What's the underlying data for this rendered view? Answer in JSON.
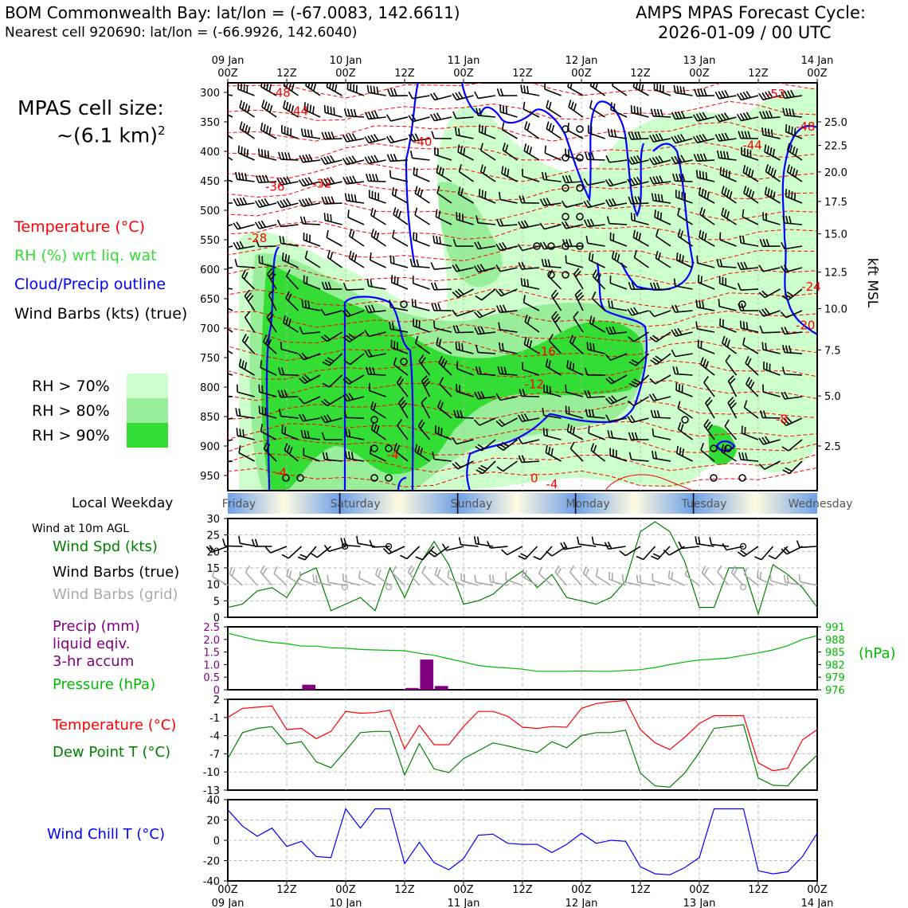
{
  "header": {
    "station_title": "BOM Commonwealth Bay: lat/lon = (-67.0083, 142.6611)",
    "nearest_cell": "Nearest cell 920690: lat/lon = (-66.9926, 142.6040)",
    "forecast_title_line1": "AMPS MPAS Forecast Cycle:",
    "forecast_title_line2": "2026-01-09 / 00 UTC"
  },
  "left_panel": {
    "cell_size_line1": "MPAS cell size:",
    "cell_size_line2": "~(6.1 km)",
    "cell_size_sup": "2",
    "legend_temperature": "Temperature (°C)",
    "legend_rh": "RH (%) wrt liq. wat",
    "legend_cloud": "Cloud/Precip outline",
    "legend_barbs": "Wind Barbs (kts) (true)",
    "rh_levels": [
      "RH > 70%",
      "RH > 80%",
      "RH > 90%"
    ],
    "local_weekday_label": "Local Weekday",
    "wind_10m_label": "Wind at 10m AGL",
    "wind_spd_label": "Wind Spd (kts)",
    "wind_barbs_true_label": "Wind Barbs (true)",
    "wind_barbs_grid_label": "Wind Barbs (grid)",
    "precip_line1": "Precip (mm)",
    "precip_line2": "liquid eqiv.",
    "precip_line3": "3-hr accum",
    "pressure_label": "Pressure (hPa)",
    "temp_label": "Temperature (°C)",
    "dewpoint_label": "Dew Point T (°C)",
    "windchill_label": "Wind Chill T (°C)"
  },
  "colors": {
    "temperature": "#ff0000",
    "rh_legend": "#33dd33",
    "cloud": "#0000ff",
    "wind_spd": "#008000",
    "grid_barbs": "#aaaaaa",
    "precip": "#800080",
    "pressure": "#00bb00",
    "dewpoint": "#008000",
    "windchill": "#0000ff",
    "rh70": "#ccffcc",
    "rh80": "#99ee99",
    "rh90": "#33dd33"
  },
  "chart_data": [
    {
      "type": "contour",
      "name": "time-height cross section",
      "x_top_ticks": [
        "09 Jan\n00Z",
        "12Z",
        "10 Jan\n00Z",
        "12Z",
        "11 Jan\n00Z",
        "12Z",
        "12 Jan\n00Z",
        "12Z",
        "13 Jan\n00Z",
        "12Z",
        "14 Jan\n00Z"
      ],
      "ylabel_right": "kft MSL",
      "pressure_levels": [
        300,
        350,
        400,
        450,
        500,
        550,
        600,
        650,
        700,
        750,
        800,
        850,
        900,
        950
      ],
      "kft_ticks": [
        "25.0",
        "22.5",
        "20.0",
        "17.5",
        "15.0",
        "12.5",
        "10.0",
        "7.5",
        "5.0",
        "2.5"
      ],
      "kft_tick_pressures": [
        350,
        390,
        435,
        485,
        540,
        605,
        667,
        737,
        815,
        900
      ],
      "isotherm_labels": [
        {
          "t": 0.9,
          "p": 301,
          "label": "-48"
        },
        {
          "t": 1.2,
          "p": 332,
          "label": "-44"
        },
        {
          "t": 3.3,
          "p": 384,
          "label": "-40"
        },
        {
          "t": 0.8,
          "p": 460,
          "label": "-36"
        },
        {
          "t": 1.6,
          "p": 455,
          "label": "-32"
        },
        {
          "t": 0.5,
          "p": 547,
          "label": "-28"
        },
        {
          "t": 9.3,
          "p": 303,
          "label": "-52"
        },
        {
          "t": 9.8,
          "p": 358,
          "label": "-48"
        },
        {
          "t": 8.9,
          "p": 390,
          "label": "-44"
        },
        {
          "t": 9.9,
          "p": 630,
          "label": "-24"
        },
        {
          "t": 9.8,
          "p": 695,
          "label": "-20"
        },
        {
          "t": 5.4,
          "p": 740,
          "label": "-16"
        },
        {
          "t": 5.2,
          "p": 795,
          "label": "-12"
        },
        {
          "t": 9.4,
          "p": 855,
          "label": "-8"
        },
        {
          "t": 2.8,
          "p": 915,
          "label": "-4"
        },
        {
          "t": 0.9,
          "p": 945,
          "label": "-4"
        },
        {
          "t": 5.2,
          "p": 955,
          "label": "0"
        },
        {
          "t": 5.5,
          "p": 965,
          "label": "-4"
        }
      ],
      "local_weekdays": [
        "Friday",
        "Saturday",
        "Sunday",
        "Monday",
        "Tuesday",
        "Wednesday"
      ]
    },
    {
      "type": "line",
      "name": "Wind Spd (kts)",
      "x_hours": [
        0,
        3,
        6,
        9,
        12,
        15,
        18,
        21,
        24,
        27,
        30,
        33,
        36,
        39,
        42,
        45,
        48,
        51,
        54,
        57,
        60,
        63,
        66,
        69,
        72,
        75,
        78,
        81,
        84,
        87,
        90,
        93,
        96,
        99,
        102,
        105,
        108,
        111,
        114,
        117,
        120
      ],
      "values": [
        3,
        4,
        8,
        9,
        6,
        13,
        15,
        2,
        4,
        6,
        2,
        15,
        6,
        16,
        23,
        16,
        4,
        5,
        7,
        11,
        14,
        9,
        13,
        6,
        5,
        4,
        6,
        11,
        26,
        29,
        26,
        17,
        3,
        3,
        15,
        15,
        1,
        16,
        13,
        9,
        3
      ],
      "ylim": [
        0,
        30
      ],
      "yticks": [
        0,
        5,
        10,
        15,
        20,
        25,
        30
      ]
    },
    {
      "type": "bar+line",
      "name": "Precip (mm) / Pressure (hPa)",
      "precip_bars": [
        {
          "hour": 16.5,
          "value": 0.2
        },
        {
          "hour": 37.5,
          "value": 0.07
        },
        {
          "hour": 40.5,
          "value": 1.2
        },
        {
          "hour": 43.5,
          "value": 0.15
        }
      ],
      "precip_ylim": [
        0,
        2.5
      ],
      "precip_yticks": [
        "0",
        "0.5",
        "1.0",
        "1.5",
        "2.0",
        "2.5"
      ],
      "pressure_hours": [
        0,
        3,
        6,
        9,
        12,
        15,
        18,
        21,
        24,
        27,
        30,
        33,
        36,
        39,
        42,
        45,
        48,
        51,
        54,
        57,
        60,
        63,
        66,
        69,
        72,
        75,
        78,
        81,
        84,
        87,
        90,
        93,
        96,
        99,
        102,
        105,
        108,
        111,
        114,
        117,
        120
      ],
      "pressure_values": [
        989.5,
        988.6,
        987.8,
        987.3,
        987.0,
        986.4,
        986.4,
        986.0,
        985.9,
        985.6,
        985.5,
        985.4,
        985.3,
        984.7,
        984.2,
        983.4,
        982.6,
        981.8,
        981.4,
        981.2,
        980.9,
        980.4,
        980.4,
        980.4,
        980.5,
        980.4,
        980.4,
        980.6,
        980.8,
        981.3,
        982.0,
        982.6,
        983.1,
        983.3,
        983.6,
        984.2,
        984.8,
        985.5,
        986.5,
        988.0,
        988.9
      ],
      "pressure_ylim": [
        976,
        991
      ],
      "pressure_yticks": [
        "976",
        "979",
        "982",
        "985",
        "988",
        "991"
      ],
      "right_label": "(hPa)"
    },
    {
      "type": "line",
      "name": "Temperature / Dew Point (°C)",
      "x_hours": [
        0,
        3,
        6,
        9,
        12,
        15,
        18,
        21,
        24,
        27,
        30,
        33,
        36,
        39,
        42,
        45,
        48,
        51,
        54,
        57,
        60,
        63,
        66,
        69,
        72,
        75,
        78,
        81,
        84,
        87,
        90,
        93,
        96,
        99,
        102,
        105,
        108,
        111,
        114,
        117,
        120
      ],
      "temperature": [
        -1,
        0.5,
        0.7,
        0.9,
        -3,
        -2.8,
        -4.5,
        -3.3,
        0,
        -0.3,
        -0.2,
        0.2,
        -6.2,
        -2.3,
        -5.5,
        -5.5,
        -2.5,
        0,
        0,
        -0.8,
        -2.6,
        -2.8,
        -2.5,
        -2.6,
        0.5,
        1.3,
        1.6,
        1.8,
        -3,
        -5.2,
        -6.3,
        -4.3,
        -2,
        -0.7,
        -0.7,
        -0.7,
        -8.5,
        -9.8,
        -9.4,
        -4.7,
        -3
      ],
      "dewpoint": [
        -7.8,
        -3.5,
        -2.8,
        -2.5,
        -5.4,
        -5,
        -8.3,
        -9.3,
        -6.5,
        -3.5,
        -3.3,
        -3.3,
        -10.5,
        -5.3,
        -9.5,
        -10.1,
        -7.8,
        -6.5,
        -5.2,
        -5.7,
        -6.3,
        -6.8,
        -5,
        -6,
        -4,
        -3.5,
        -3.5,
        -3.1,
        -10.2,
        -12.3,
        -12.5,
        -10.2,
        -6.8,
        -2.8,
        -2.5,
        -2.2,
        -11,
        -12.2,
        -12.3,
        -9.5,
        -7.2
      ],
      "ylim": [
        -13,
        2
      ],
      "yticks": [
        "2",
        "-1",
        "-4",
        "-7",
        "-10",
        "-13"
      ]
    },
    {
      "type": "line",
      "name": "Wind Chill T (°C)",
      "x_hours": [
        0,
        3,
        6,
        9,
        12,
        15,
        18,
        21,
        24,
        27,
        30,
        33,
        36,
        39,
        42,
        45,
        48,
        51,
        54,
        57,
        60,
        63,
        66,
        69,
        72,
        75,
        78,
        81,
        84,
        87,
        90,
        93,
        96,
        99,
        102,
        105,
        108,
        111,
        114,
        117,
        120
      ],
      "values": [
        30,
        14,
        4,
        12,
        -6,
        -1,
        -16,
        -17,
        31,
        12,
        31,
        31,
        -23,
        -2,
        -22,
        -29,
        -18,
        5,
        6,
        -3,
        -4,
        -4,
        -12,
        -4,
        7,
        -3,
        0,
        -1,
        -26,
        -33,
        -34,
        -27,
        -17,
        31,
        31,
        31,
        -30,
        -33,
        -31,
        -16,
        7
      ],
      "ylim": [
        -40,
        40
      ],
      "yticks": [
        "40",
        "20",
        "0",
        "-20",
        "-40"
      ]
    },
    {
      "type": "axis",
      "name": "bottom time axis",
      "x_ticks": [
        "00Z\n09 Jan",
        "12Z",
        "00Z\n10 Jan",
        "12Z",
        "00Z\n11 Jan",
        "12Z",
        "00Z\n12 Jan",
        "12Z",
        "00Z\n13 Jan",
        "12Z",
        "00Z\n14 Jan"
      ]
    }
  ]
}
